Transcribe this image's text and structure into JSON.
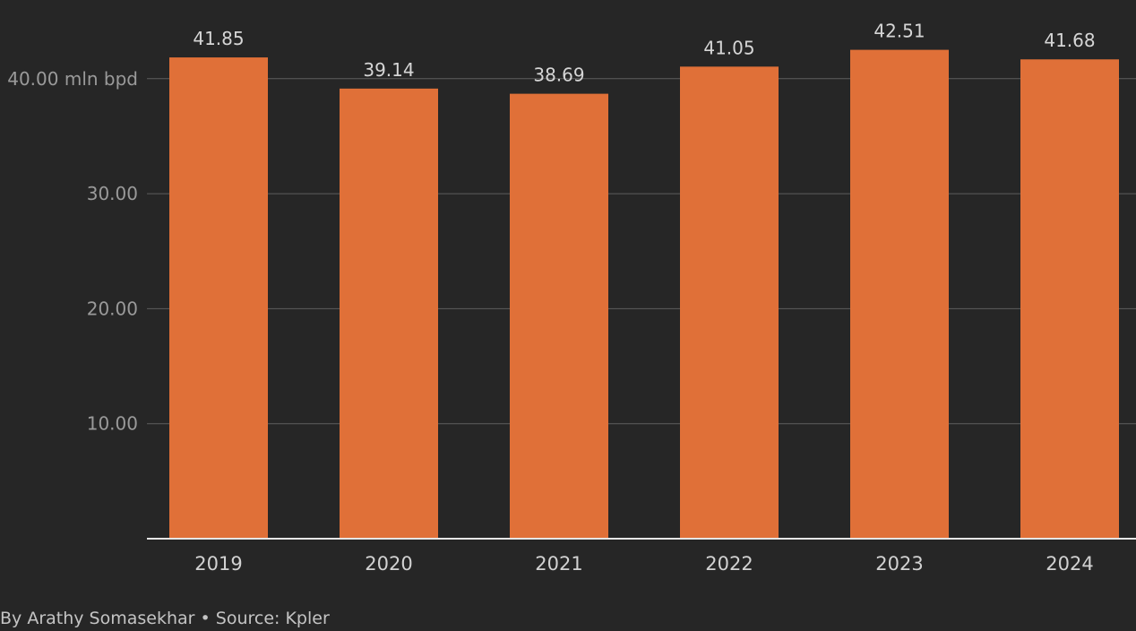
{
  "chart_data": {
    "type": "bar",
    "title": "",
    "xlabel": "",
    "ylabel": "",
    "categories": [
      "2019",
      "2020",
      "2021",
      "2022",
      "2023",
      "2024"
    ],
    "values": [
      41.85,
      39.14,
      38.69,
      41.05,
      42.51,
      41.68
    ],
    "ylim": [
      0,
      45
    ],
    "y_ticks": [
      {
        "value": 10,
        "label": "10.00"
      },
      {
        "value": 20,
        "label": "20.00"
      },
      {
        "value": 30,
        "label": "30.00"
      },
      {
        "value": 40,
        "label": "40.00 mln bpd"
      }
    ],
    "data_labels": [
      "41.85",
      "39.14",
      "38.69",
      "41.05",
      "42.51",
      "41.68"
    ],
    "grid": true,
    "legend": "none",
    "colors": {
      "background": "#262626",
      "bar": "#e07038",
      "grid": "#5e5e5e",
      "baseline": "#e6e6e6"
    }
  },
  "footer": {
    "credit": "By Arathy Somasekhar • Source: Kpler"
  }
}
